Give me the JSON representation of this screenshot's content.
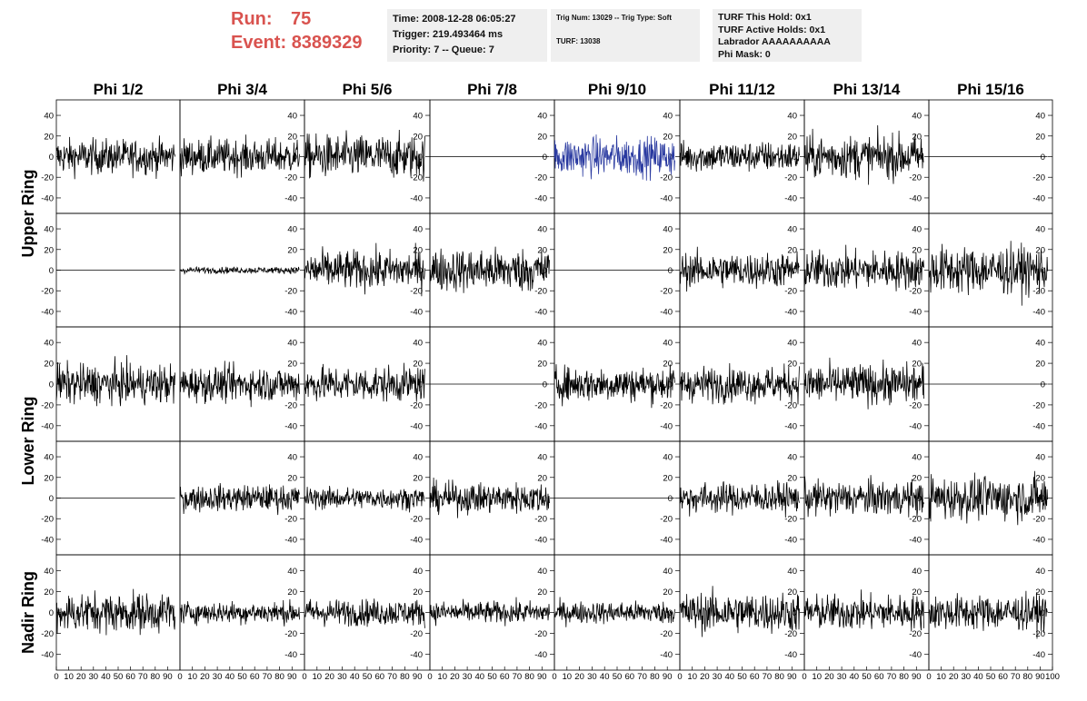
{
  "header": {
    "run_label": "Run:",
    "run_value": "75",
    "event_label": "Event:",
    "event_value": "8389329"
  },
  "time_box": {
    "time": "Time: 2008-12-28 06:05:27",
    "trigger": "Trigger: 219.493464 ms",
    "priority": "Priority: 7 -- Queue: 7"
  },
  "trig_box": {
    "trig_line": "Trig Num: 13029 -- Trig Type: Soft",
    "turf_line": "TURF: 13038"
  },
  "turf_box": {
    "this_hold": "TURF This Hold: 0x1",
    "active_holds": "TURF Active Holds: 0x1",
    "labrador": "Labrador AAAAAAAAAA",
    "phi_mask": "Phi Mask: 0"
  },
  "colors": {
    "trace": "#000000",
    "highlight_trace": "#2a3aa0",
    "header_red": "#d9534f",
    "info_bg": "#efefef"
  },
  "chart_data": {
    "type": "line",
    "columns": [
      "Phi 1/2",
      "Phi 3/4",
      "Phi 5/6",
      "Phi 7/8",
      "Phi 9/10",
      "Phi 11/12",
      "Phi 13/14",
      "Phi 15/16"
    ],
    "ring_labels": [
      "Upper Ring",
      "Lower Ring",
      "Nadir Ring"
    ],
    "rows": [
      {
        "ring": "Upper Ring",
        "amplitude": [
          16,
          16,
          20,
          0,
          18,
          14,
          20,
          0
        ],
        "highlight": [
          false,
          false,
          false,
          false,
          true,
          false,
          false,
          false
        ]
      },
      {
        "ring": "Upper Ring",
        "amplitude": [
          0,
          3,
          18,
          20,
          0,
          16,
          18,
          22
        ],
        "highlight": [
          false,
          false,
          false,
          false,
          false,
          false,
          false,
          false
        ]
      },
      {
        "ring": "Lower Ring",
        "amplitude": [
          18,
          16,
          16,
          0,
          16,
          16,
          18,
          0
        ],
        "highlight": [
          false,
          false,
          false,
          false,
          false,
          false,
          false,
          false
        ]
      },
      {
        "ring": "Lower Ring",
        "amplitude": [
          0,
          12,
          10,
          14,
          0,
          14,
          16,
          20
        ],
        "highlight": [
          false,
          false,
          false,
          false,
          false,
          false,
          false,
          false
        ]
      },
      {
        "ring": "Nadir Ring",
        "amplitude": [
          18,
          10,
          12,
          10,
          10,
          18,
          16,
          16
        ],
        "highlight": [
          false,
          false,
          false,
          false,
          false,
          false,
          false,
          false
        ]
      }
    ],
    "ylim": [
      -55,
      55
    ],
    "yticks": [
      -40,
      -20,
      0,
      20,
      40
    ],
    "ytick_labels": [
      "-40",
      "-20",
      "0",
      "20",
      "40"
    ],
    "xlim": [
      0,
      100
    ],
    "xticks": [
      0,
      10,
      20,
      30,
      40,
      50,
      60,
      70,
      80,
      90,
      100
    ],
    "xtick_labels": [
      "0",
      "10",
      "20",
      "30",
      "40",
      "50",
      "60",
      "70",
      "80",
      "90",
      "100"
    ],
    "n_samples": 260
  }
}
